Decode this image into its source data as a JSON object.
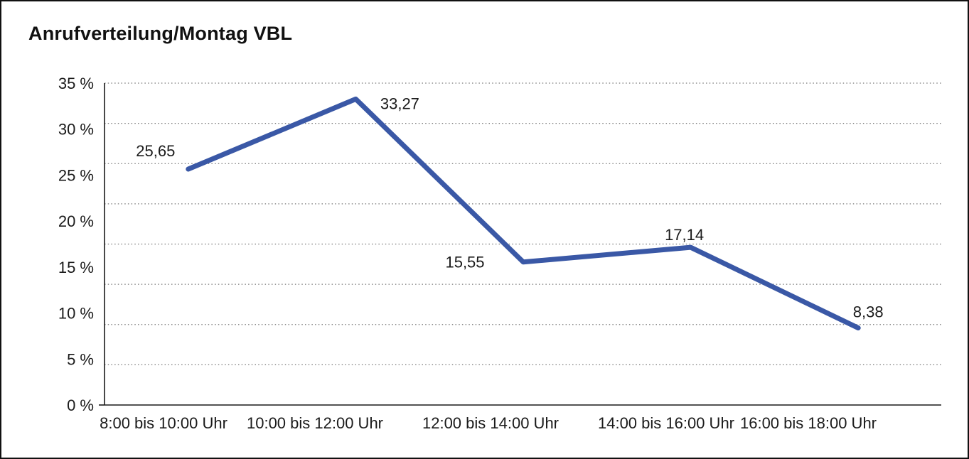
{
  "window": {
    "background": "#ffffff",
    "border_color": "#111111"
  },
  "chart_data": {
    "type": "line",
    "title": "Anrufverteilung/Montag VBL",
    "categories": [
      "8:00 bis 10:00 Uhr",
      "10:00 bis 12:00 Uhr",
      "12:00 bis 14:00 Uhr",
      "14:00 bis 16:00 Uhr",
      "16:00 bis 18:00 Uhr"
    ],
    "values": [
      25.65,
      33.27,
      15.55,
      17.14,
      8.38
    ],
    "value_labels": [
      "25,65",
      "33,27",
      "15,55",
      "17,14",
      "8,38"
    ],
    "xlabel": "",
    "ylabel": "",
    "ylim": [
      0,
      35
    ],
    "y_ticks": [
      {
        "value": 35,
        "label": "35 %"
      },
      {
        "value": 30,
        "label": "30 %"
      },
      {
        "value": 25,
        "label": "25 %"
      },
      {
        "value": 20,
        "label": "20 %"
      },
      {
        "value": 15,
        "label": "15 %"
      },
      {
        "value": 10,
        "label": "10 %"
      },
      {
        "value": 5,
        "label": "5 %"
      },
      {
        "value": 0,
        "label": "0 %"
      }
    ],
    "grid": "horizontal-dotted",
    "grid_divisions": 8,
    "legend": "none",
    "line_color": "#3A58A6",
    "grid_color": "#777777",
    "axis_color": "#1a1a1a",
    "text_color": "#1a1a1a"
  }
}
